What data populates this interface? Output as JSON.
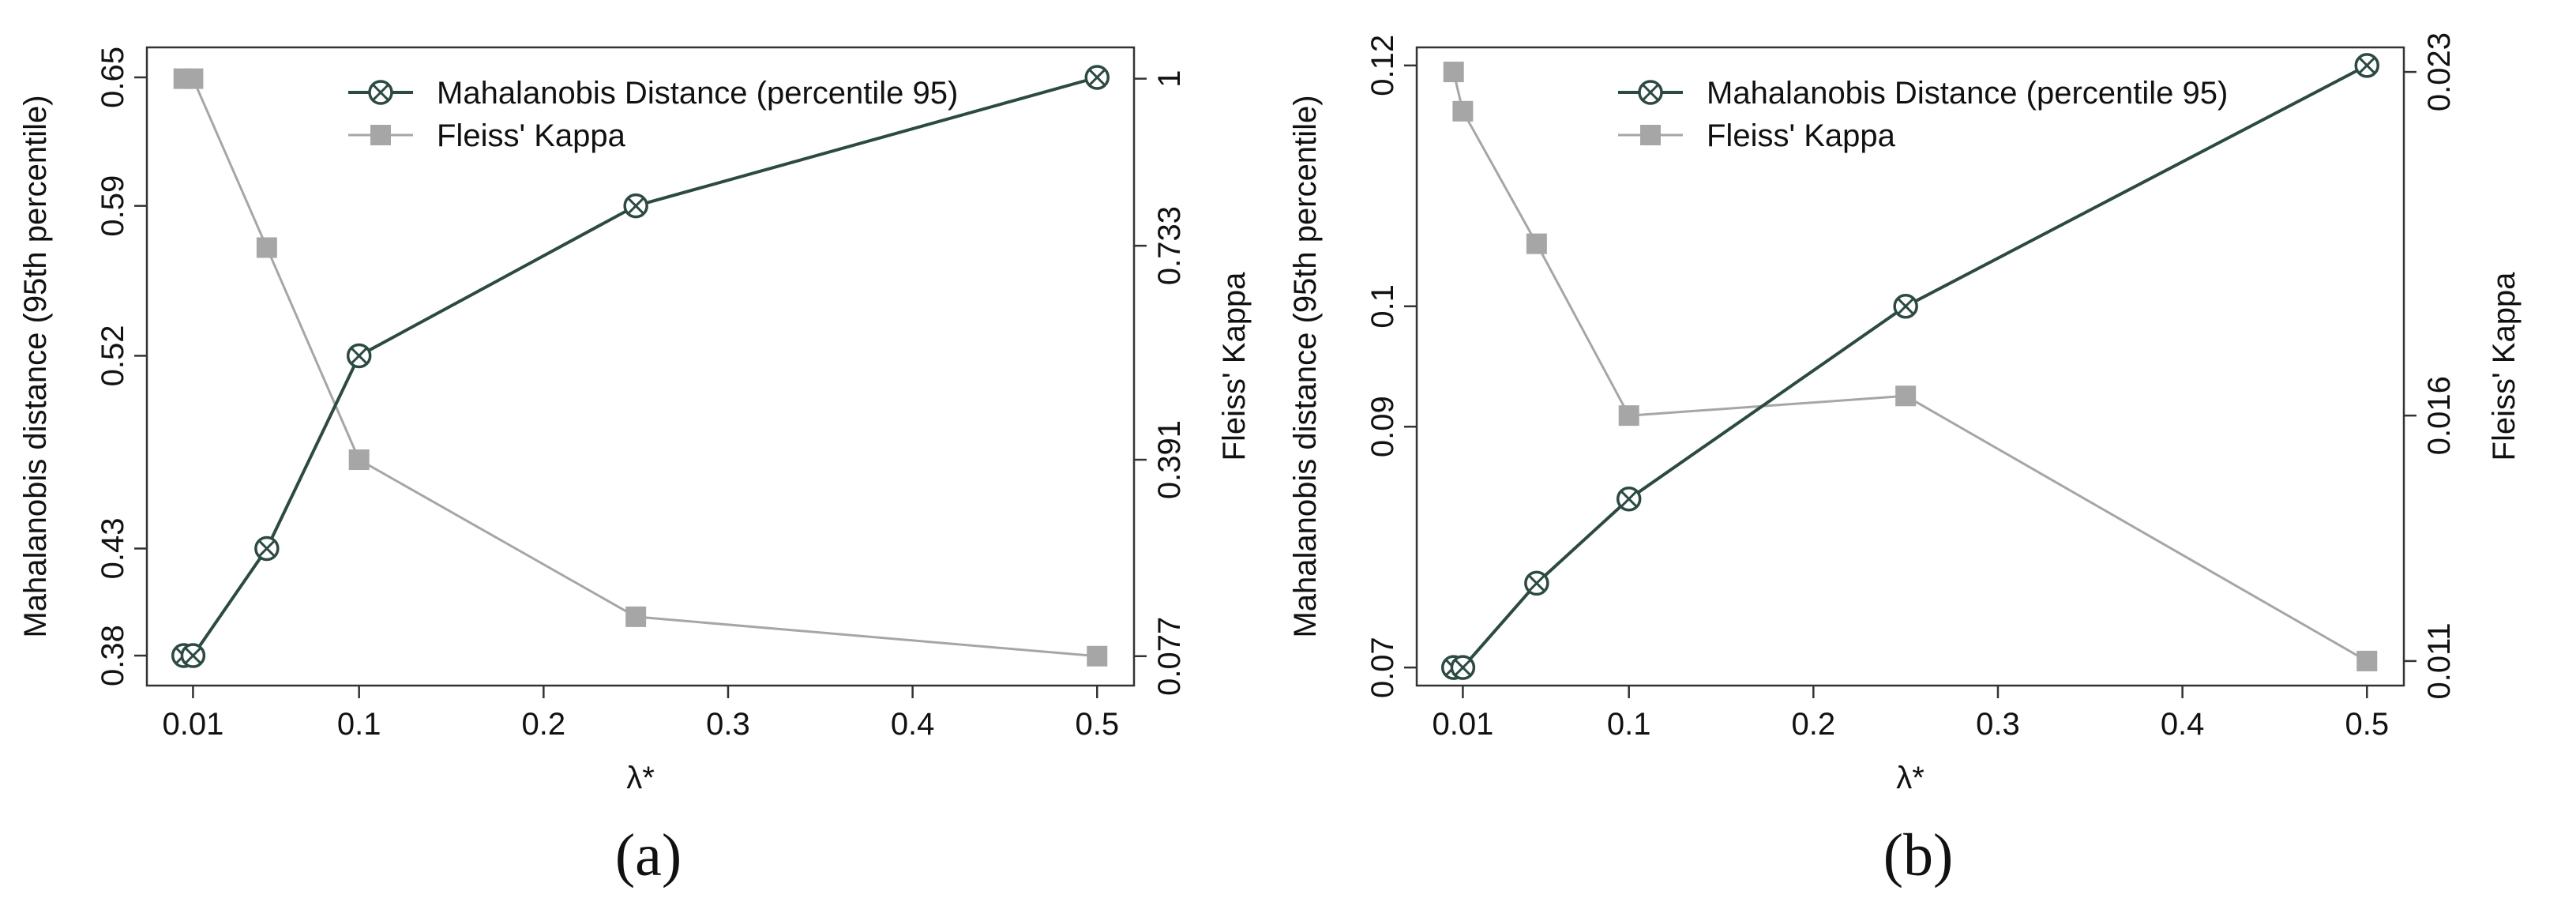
{
  "chart_data": [
    {
      "type": "line",
      "panel_label": "(a)",
      "xlabel": "λ*",
      "ylabel_left": "Mahalanobis distance (95th percentile)",
      "ylabel_right": "Fleiss' Kappa",
      "x_ticks": [
        0.01,
        0.1,
        0.2,
        0.3,
        0.4,
        0.5
      ],
      "x_tick_labels": [
        "0.01",
        "0.1",
        "0.2",
        "0.3",
        "0.4",
        "0.5"
      ],
      "xlim": [
        -0.015,
        0.52
      ],
      "left_ticks": [
        0.38,
        0.43,
        0.52,
        0.59,
        0.65
      ],
      "left_tick_labels": [
        "0.38",
        "0.43",
        "0.52",
        "0.59",
        "0.65"
      ],
      "ylim_left": [
        0.366,
        0.664
      ],
      "right_ticks": [
        0.077,
        0.391,
        0.733,
        1.0
      ],
      "right_tick_labels": [
        "0.077",
        "0.391",
        "0.733",
        "1"
      ],
      "ylim_right": [
        0.03,
        1.05
      ],
      "legend_position": "top",
      "series": [
        {
          "name": "Mahalanobis Distance (percentile 95)",
          "axis": "left",
          "color": "#2a4a42",
          "marker": "circle-x",
          "x": [
            0.005,
            0.01,
            0.05,
            0.1,
            0.25,
            0.5
          ],
          "values": [
            0.38,
            0.38,
            0.43,
            0.52,
            0.59,
            0.65
          ]
        },
        {
          "name": "Fleiss' Kappa",
          "axis": "right",
          "color": "#a6a6a6",
          "marker": "square",
          "x": [
            0.005,
            0.01,
            0.05,
            0.1,
            0.25,
            0.5
          ],
          "values": [
            1.0,
            1.0,
            0.73,
            0.391,
            0.14,
            0.077
          ]
        }
      ]
    },
    {
      "type": "line",
      "panel_label": "(b)",
      "xlabel": "λ*",
      "ylabel_left": "Mahalanobis distance (95th percentile)",
      "ylabel_right": "Fleiss' Kappa",
      "x_ticks": [
        0.01,
        0.1,
        0.2,
        0.3,
        0.4,
        0.5
      ],
      "x_tick_labels": [
        "0.01",
        "0.1",
        "0.2",
        "0.3",
        "0.4",
        "0.5"
      ],
      "xlim": [
        -0.015,
        0.52
      ],
      "left_ticks": [
        0.07,
        0.09,
        0.1,
        0.12
      ],
      "left_tick_labels": [
        "0.07",
        "0.09",
        "0.1",
        "0.12"
      ],
      "ylim_left": [
        0.0685,
        0.1215
      ],
      "right_ticks": [
        0.011,
        0.016,
        0.023
      ],
      "right_tick_labels": [
        "0.011",
        "0.016",
        "0.023"
      ],
      "ylim_right": [
        0.0105,
        0.0235
      ],
      "legend_position": "top",
      "series": [
        {
          "name": "Mahalanobis Distance (percentile 95)",
          "axis": "left",
          "color": "#2a4a42",
          "marker": "circle-x",
          "x": [
            0.005,
            0.01,
            0.05,
            0.1,
            0.25,
            0.5
          ],
          "values": [
            0.07,
            0.07,
            0.077,
            0.084,
            0.1,
            0.12
          ]
        },
        {
          "name": "Fleiss' Kappa",
          "axis": "right",
          "color": "#a6a6a6",
          "marker": "square",
          "x": [
            0.005,
            0.01,
            0.05,
            0.1,
            0.25,
            0.5
          ],
          "values": [
            0.023,
            0.0222,
            0.0195,
            0.016,
            0.0164,
            0.011
          ]
        }
      ]
    }
  ]
}
